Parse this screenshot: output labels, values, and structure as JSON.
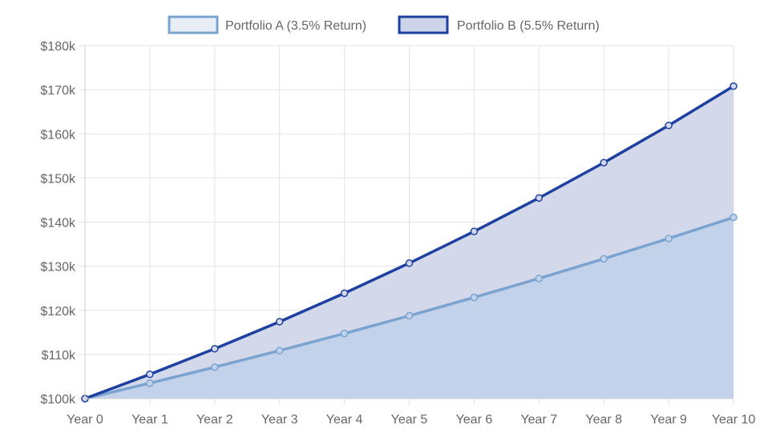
{
  "chart_data": {
    "type": "area",
    "categories": [
      "Year 0",
      "Year 1",
      "Year 2",
      "Year 3",
      "Year 4",
      "Year 5",
      "Year 6",
      "Year 7",
      "Year 8",
      "Year 9",
      "Year 10"
    ],
    "series": [
      {
        "name": "Portfolio A (3.5% Return)",
        "values": [
          100000,
          103500,
          107123,
          110872,
          114752,
          118769,
          122926,
          127228,
          131681,
          136290,
          141060
        ],
        "line_color": "#7ba3cf",
        "fill_color": "#c2d2ea",
        "legend_fill": "#e8eef6"
      },
      {
        "name": "Portfolio B (5.5% Return)",
        "values": [
          100000,
          105500,
          111303,
          117424,
          123882,
          130696,
          137884,
          145468,
          153469,
          161909,
          170814
        ],
        "line_color": "#1e40a0",
        "fill_color": "#d3d9ea",
        "legend_fill": "#cdd5ea"
      }
    ],
    "y_tick_labels": [
      "$100k",
      "$110k",
      "$120k",
      "$130k",
      "$140k",
      "$150k",
      "$160k",
      "$170k",
      "$180k"
    ],
    "y_ticks": [
      100000,
      110000,
      120000,
      130000,
      140000,
      150000,
      160000,
      170000,
      180000
    ],
    "ylim": [
      100000,
      180000
    ],
    "grid": true,
    "legend_position": "top-center"
  }
}
